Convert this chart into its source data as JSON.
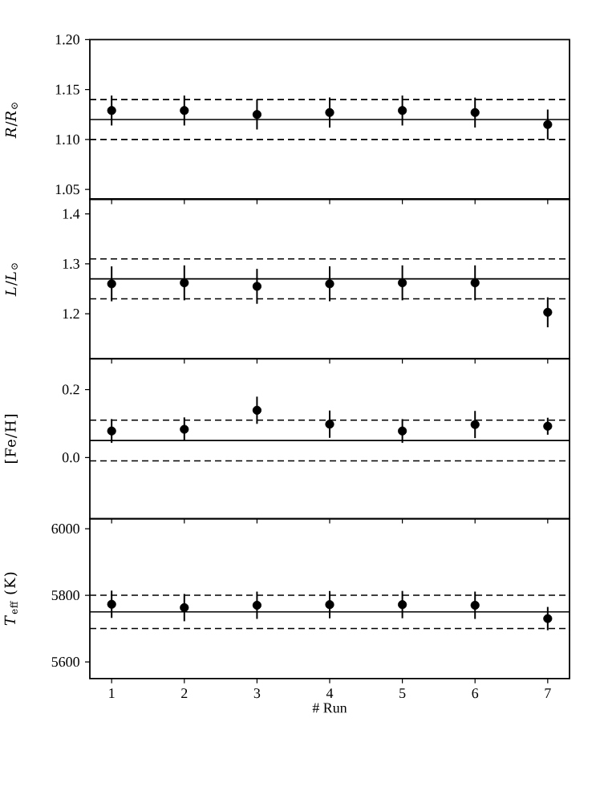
{
  "chart_data": [
    {
      "type": "scatter",
      "ylabel": "*R*/*R*$_{⊙}$",
      "x": [
        1,
        2,
        3,
        4,
        5,
        6,
        7
      ],
      "xlim": [
        0.7,
        7.3
      ],
      "xticks": [
        1,
        2,
        3,
        4,
        5,
        6,
        7
      ],
      "ylim": [
        1.04,
        1.2
      ],
      "yticks": [
        {
          "value": 1.05,
          "label": "1.05"
        },
        {
          "value": 1.1,
          "label": "1.10"
        },
        {
          "value": 1.15,
          "label": "1.15"
        },
        {
          "value": 1.2,
          "label": "1.20"
        }
      ],
      "tick_labels": "y",
      "marker": "circle",
      "color": "#000000",
      "values": [
        1.129,
        1.129,
        1.125,
        1.127,
        1.129,
        1.127,
        1.115
      ],
      "errors": [
        0.015,
        0.015,
        0.015,
        0.015,
        0.015,
        0.015,
        0.015
      ],
      "ref_lines": [
        {
          "axis": "y",
          "value": 1.12,
          "line_style": "solid"
        },
        {
          "axis": "y",
          "value": 1.14,
          "line_style": "dashed"
        },
        {
          "axis": "y",
          "value": 1.1,
          "line_style": "dashed"
        }
      ]
    },
    {
      "type": "scatter",
      "ylabel": "*L*/*L*$_{⊙}$",
      "x": [
        1,
        2,
        3,
        4,
        5,
        6,
        7
      ],
      "xlim": [
        0.7,
        7.3
      ],
      "xticks": [
        1,
        2,
        3,
        4,
        5,
        6,
        7
      ],
      "ylim": [
        1.11,
        1.43
      ],
      "yticks": [
        1.2,
        1.3,
        1.4
      ],
      "tick_labels": "y",
      "marker": "circle",
      "color": "#000000",
      "values": [
        1.26,
        1.262,
        1.255,
        1.26,
        1.262,
        1.262,
        1.203
      ],
      "errors": [
        0.035,
        0.035,
        0.035,
        0.035,
        0.035,
        0.035,
        0.03
      ],
      "ref_lines": [
        {
          "axis": "y",
          "value": 1.27,
          "line_style": "solid"
        },
        {
          "axis": "y",
          "value": 1.31,
          "line_style": "dashed"
        },
        {
          "axis": "y",
          "value": 1.23,
          "line_style": "dashed"
        }
      ]
    },
    {
      "type": "scatter",
      "ylabel": "[Fe/H]",
      "x": [
        1,
        2,
        3,
        4,
        5,
        6,
        7
      ],
      "xlim": [
        0.7,
        7.3
      ],
      "xticks": [
        1,
        2,
        3,
        4,
        5,
        6,
        7
      ],
      "ylim": [
        -0.18,
        0.29
      ],
      "yticks": [
        {
          "value": 0.0,
          "label": "0.0"
        },
        {
          "value": 0.2,
          "label": "0.2"
        }
      ],
      "tick_labels": "y",
      "marker": "circle",
      "color": "#000000",
      "values": [
        0.078,
        0.083,
        0.139,
        0.098,
        0.078,
        0.097,
        0.092
      ],
      "errors": [
        0.035,
        0.035,
        0.04,
        0.04,
        0.035,
        0.04,
        0.025
      ],
      "ref_lines": [
        {
          "axis": "y",
          "value": 0.05,
          "line_style": "solid"
        },
        {
          "axis": "y",
          "value": 0.11,
          "line_style": "dashed"
        },
        {
          "axis": "y",
          "value": -0.01,
          "line_style": "dashed"
        }
      ]
    },
    {
      "type": "scatter",
      "ylabel": "*T*$_{eff}$ (K)",
      "xlabel": "# Run",
      "x": [
        1,
        2,
        3,
        4,
        5,
        6,
        7
      ],
      "xlim": [
        0.7,
        7.3
      ],
      "xticks": [
        1,
        2,
        3,
        4,
        5,
        6,
        7
      ],
      "ylim": [
        5550,
        6030
      ],
      "yticks": [
        5600,
        5800,
        6000
      ],
      "marker": "circle",
      "color": "#000000",
      "values": [
        5773,
        5763,
        5770,
        5772,
        5772,
        5770,
        5730
      ],
      "errors": [
        41,
        41,
        41,
        41,
        41,
        41,
        35
      ],
      "ref_lines": [
        {
          "axis": "y",
          "value": 5750,
          "line_style": "solid"
        },
        {
          "axis": "y",
          "value": 5800,
          "line_style": "dashed"
        },
        {
          "axis": "y",
          "value": 5700,
          "line_style": "dashed"
        }
      ]
    }
  ]
}
